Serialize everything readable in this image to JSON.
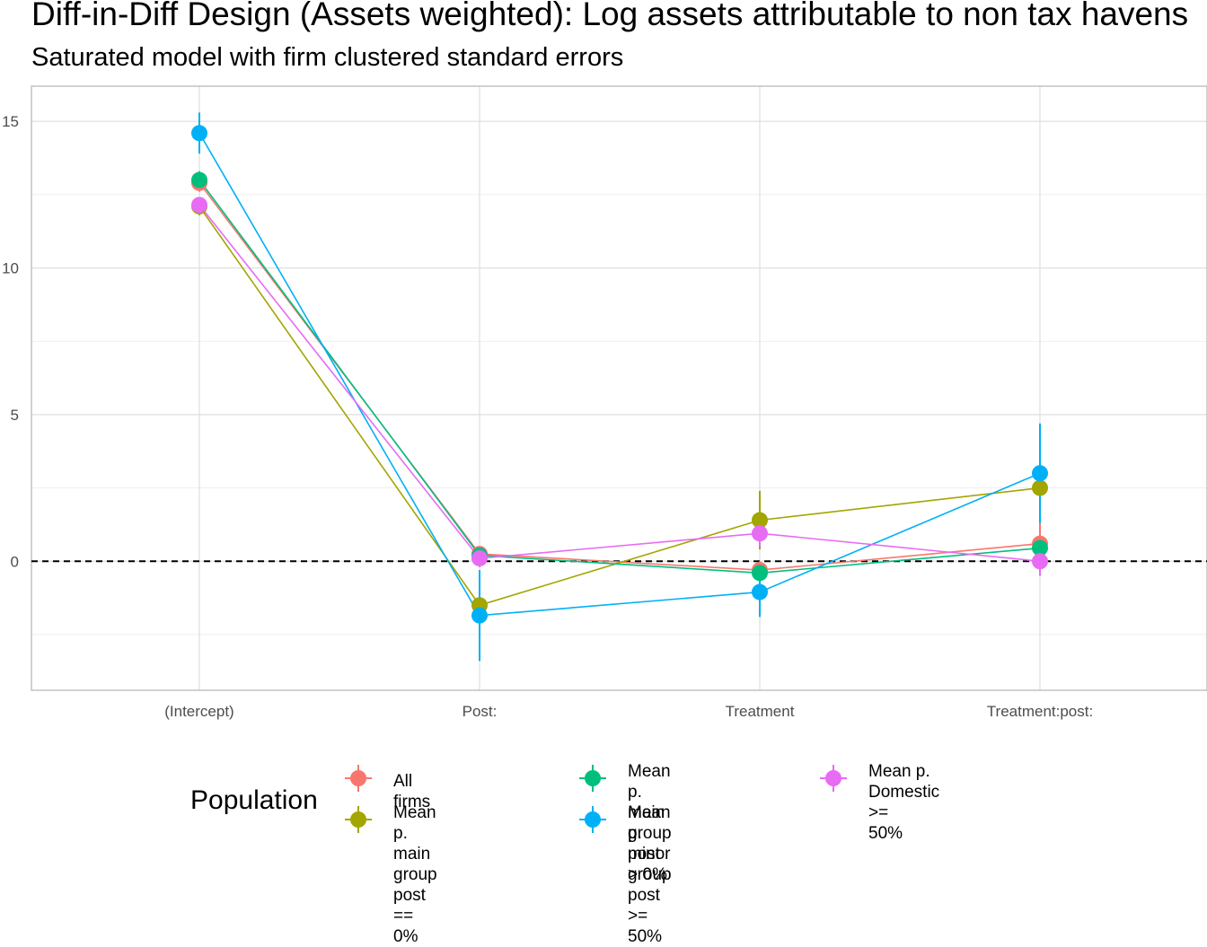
{
  "title": "Diff-in-Diff Design (Assets weighted): Log assets attributable to non tax havens",
  "subtitle": "Saturated model with firm clustered standard errors",
  "legend": {
    "title": "Population"
  },
  "chart_data": {
    "type": "line",
    "categories": [
      "(Intercept)",
      "Post:",
      "Treatment",
      "Treatment:post:"
    ],
    "ylim": [
      -4.4,
      16.2
    ],
    "yticks": [
      0,
      5,
      10,
      15
    ],
    "grid": true,
    "reference_line": {
      "y": 0,
      "style": "dashed"
    },
    "legend_position": "bottom",
    "series": [
      {
        "name": "All firms",
        "color": "#F8766D",
        "values": [
          12.9,
          0.25,
          -0.3,
          0.6
        ],
        "ci_low": [
          12.6,
          0.0,
          -0.6,
          0.0
        ],
        "ci_high": [
          13.2,
          0.5,
          0.0,
          1.3
        ]
      },
      {
        "name": "Mean p. main group\npost == 0%",
        "color": "#A3A500",
        "values": [
          12.1,
          -1.5,
          1.4,
          2.5
        ],
        "ci_low": [
          11.8,
          -2.0,
          0.4,
          1.7
        ],
        "ci_high": [
          12.4,
          -1.0,
          2.4,
          3.3
        ]
      },
      {
        "name": "Mean p. main group\npost > 0%",
        "color": "#00BF7D",
        "values": [
          13.0,
          0.2,
          -0.4,
          0.45
        ],
        "ci_low": [
          12.7,
          -0.1,
          -0.7,
          0.1
        ],
        "ci_high": [
          13.3,
          0.5,
          -0.1,
          0.8
        ]
      },
      {
        "name": "Mean p. minor group\npost >= 50%",
        "color": "#00B0F6",
        "values": [
          14.6,
          -1.85,
          -1.05,
          3.0
        ],
        "ci_low": [
          13.9,
          -3.4,
          -1.9,
          1.3
        ],
        "ci_high": [
          15.3,
          -0.3,
          -0.2,
          4.7
        ]
      },
      {
        "name": "Mean p. Domestic >=\n50%",
        "color": "#E76BF3",
        "values": [
          12.15,
          0.1,
          0.95,
          0.0
        ],
        "ci_low": [
          11.9,
          -0.2,
          0.5,
          -0.5
        ],
        "ci_high": [
          12.4,
          0.4,
          1.4,
          0.5
        ]
      }
    ]
  }
}
